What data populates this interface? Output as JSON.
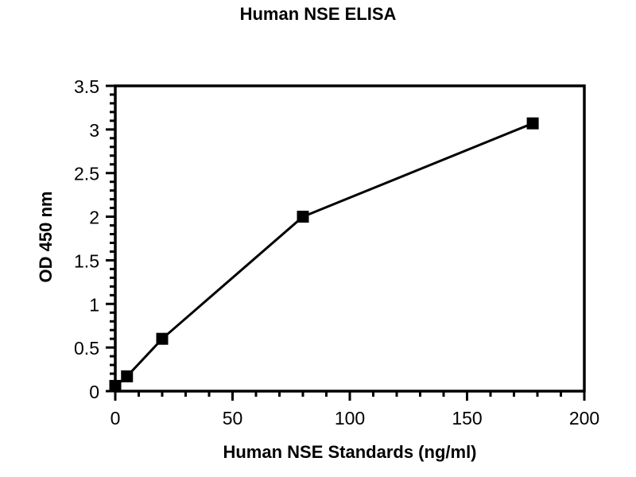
{
  "chart_data": {
    "type": "line",
    "title": "Human NSE ELISA",
    "xlabel": "Human NSE Standards (ng/ml)",
    "ylabel": "OD 450 nm",
    "x": [
      0,
      5,
      20,
      80,
      178
    ],
    "y": [
      0.06,
      0.17,
      0.6,
      2.0,
      3.07
    ],
    "xlim": [
      0,
      200
    ],
    "ylim": [
      0,
      3.5
    ],
    "x_major_ticks": [
      0,
      50,
      100,
      150,
      200
    ],
    "y_major_ticks": [
      0,
      0.5,
      1,
      1.5,
      2,
      2.5,
      3,
      3.5
    ],
    "x_minor_step": 10,
    "y_minor_step": 0.1,
    "marker": "square",
    "grid": false,
    "legend": null,
    "line_color": "#000000",
    "marker_color": "#000000",
    "axis_color": "#000000",
    "background_color": "#ffffff"
  }
}
